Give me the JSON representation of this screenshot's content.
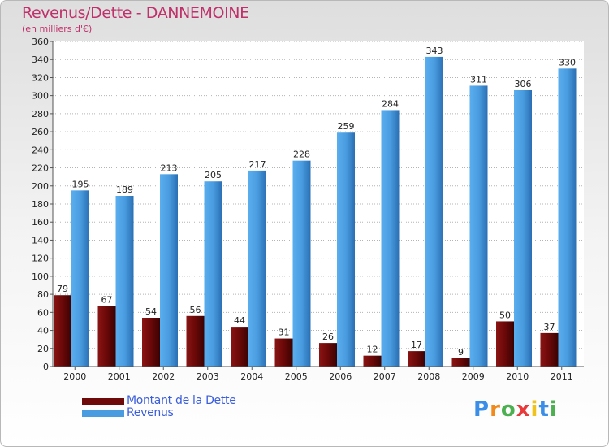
{
  "header": {
    "title": "Revenus/Dette - DANNEMOINE",
    "subtitle": "(en milliers d'€)"
  },
  "chart_data": {
    "type": "bar",
    "categories": [
      "2000",
      "2001",
      "2002",
      "2003",
      "2004",
      "2005",
      "2006",
      "2007",
      "2008",
      "2009",
      "2010",
      "2011"
    ],
    "series": [
      {
        "name": "Montant de la Dette",
        "color": "#7a1010",
        "values": [
          79,
          67,
          54,
          56,
          44,
          31,
          26,
          12,
          17,
          9,
          50,
          37
        ]
      },
      {
        "name": "Revenus",
        "color": "#4a9ce0",
        "values": [
          195,
          189,
          213,
          205,
          217,
          228,
          259,
          284,
          343,
          311,
          306,
          330
        ]
      }
    ],
    "ylim": [
      0,
      360
    ],
    "yticks": [
      0,
      20,
      40,
      60,
      80,
      100,
      120,
      140,
      160,
      180,
      200,
      220,
      240,
      260,
      280,
      300,
      320,
      340,
      360
    ],
    "grid": true,
    "legend_position": "bottom-left"
  },
  "legend": {
    "items": [
      {
        "label": "Montant de la Dette",
        "color": "#6e0a0a"
      },
      {
        "label": "Revenus",
        "color": "#4a9ce0"
      }
    ]
  },
  "logo": {
    "text": "Proxiti",
    "letters": [
      "P",
      "r",
      "o",
      "x",
      "i",
      "t",
      "i"
    ],
    "colors": [
      "#3a8ee8",
      "#f08a1c",
      "#4caf50",
      "#e83a3a",
      "#f0c21c",
      "#3a8ee8",
      "#4caf50"
    ]
  }
}
